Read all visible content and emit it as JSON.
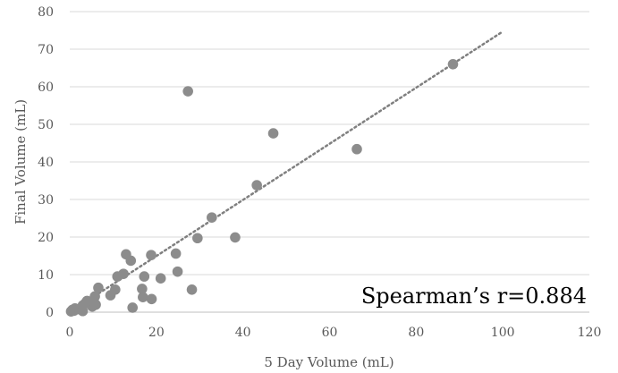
{
  "chart_data": {
    "type": "scatter",
    "title": "",
    "xlabel": "5 Day Volume (mL)",
    "ylabel": "Final Volume (mL)",
    "xlim": [
      0,
      120
    ],
    "ylim": [
      0,
      80
    ],
    "xticks": [
      "0",
      "20",
      "40",
      "60",
      "80",
      "100",
      "120"
    ],
    "yticks": [
      "0",
      "10",
      "20",
      "30",
      "40",
      "50",
      "60",
      "70",
      "80"
    ],
    "x_tick_values": [
      0,
      20,
      40,
      60,
      80,
      100,
      120
    ],
    "y_tick_values": [
      0,
      10,
      20,
      30,
      40,
      50,
      60,
      70,
      80
    ],
    "grid": "horizontal",
    "marker_color": "#8c8c8c",
    "trendline": {
      "style": "dotted",
      "color": "#7f7f7f",
      "from": [
        0,
        0
      ],
      "to": [
        100,
        74.7
      ]
    },
    "annotation": "Spearman’s r=0.884",
    "points": [
      {
        "x": 0.3,
        "y": 0.2
      },
      {
        "x": 0.6,
        "y": 0.6
      },
      {
        "x": 1.0,
        "y": 0.4
      },
      {
        "x": 1.2,
        "y": 1.0
      },
      {
        "x": 2.2,
        "y": 0.8
      },
      {
        "x": 3.0,
        "y": 0.3
      },
      {
        "x": 3.0,
        "y": 1.8
      },
      {
        "x": 3.6,
        "y": 2.4
      },
      {
        "x": 4.0,
        "y": 3.0
      },
      {
        "x": 5.2,
        "y": 1.5
      },
      {
        "x": 5.6,
        "y": 2.6
      },
      {
        "x": 5.8,
        "y": 4.2
      },
      {
        "x": 6.0,
        "y": 2.0
      },
      {
        "x": 6.6,
        "y": 6.5
      },
      {
        "x": 9.4,
        "y": 4.5
      },
      {
        "x": 10.5,
        "y": 6.0
      },
      {
        "x": 11.0,
        "y": 9.5
      },
      {
        "x": 12.4,
        "y": 10.2
      },
      {
        "x": 13.0,
        "y": 15.4
      },
      {
        "x": 14.1,
        "y": 13.7
      },
      {
        "x": 14.5,
        "y": 1.2
      },
      {
        "x": 16.7,
        "y": 6.2
      },
      {
        "x": 16.9,
        "y": 4.0
      },
      {
        "x": 17.2,
        "y": 9.5
      },
      {
        "x": 18.8,
        "y": 15.2
      },
      {
        "x": 18.9,
        "y": 3.5
      },
      {
        "x": 21.0,
        "y": 9.0
      },
      {
        "x": 24.5,
        "y": 15.6
      },
      {
        "x": 24.9,
        "y": 10.8
      },
      {
        "x": 27.3,
        "y": 58.8
      },
      {
        "x": 28.2,
        "y": 6.0
      },
      {
        "x": 29.5,
        "y": 19.7
      },
      {
        "x": 32.8,
        "y": 25.2
      },
      {
        "x": 38.2,
        "y": 19.9
      },
      {
        "x": 43.2,
        "y": 33.8
      },
      {
        "x": 47.0,
        "y": 47.6
      },
      {
        "x": 66.3,
        "y": 43.4
      },
      {
        "x": 88.5,
        "y": 66.0
      }
    ]
  }
}
